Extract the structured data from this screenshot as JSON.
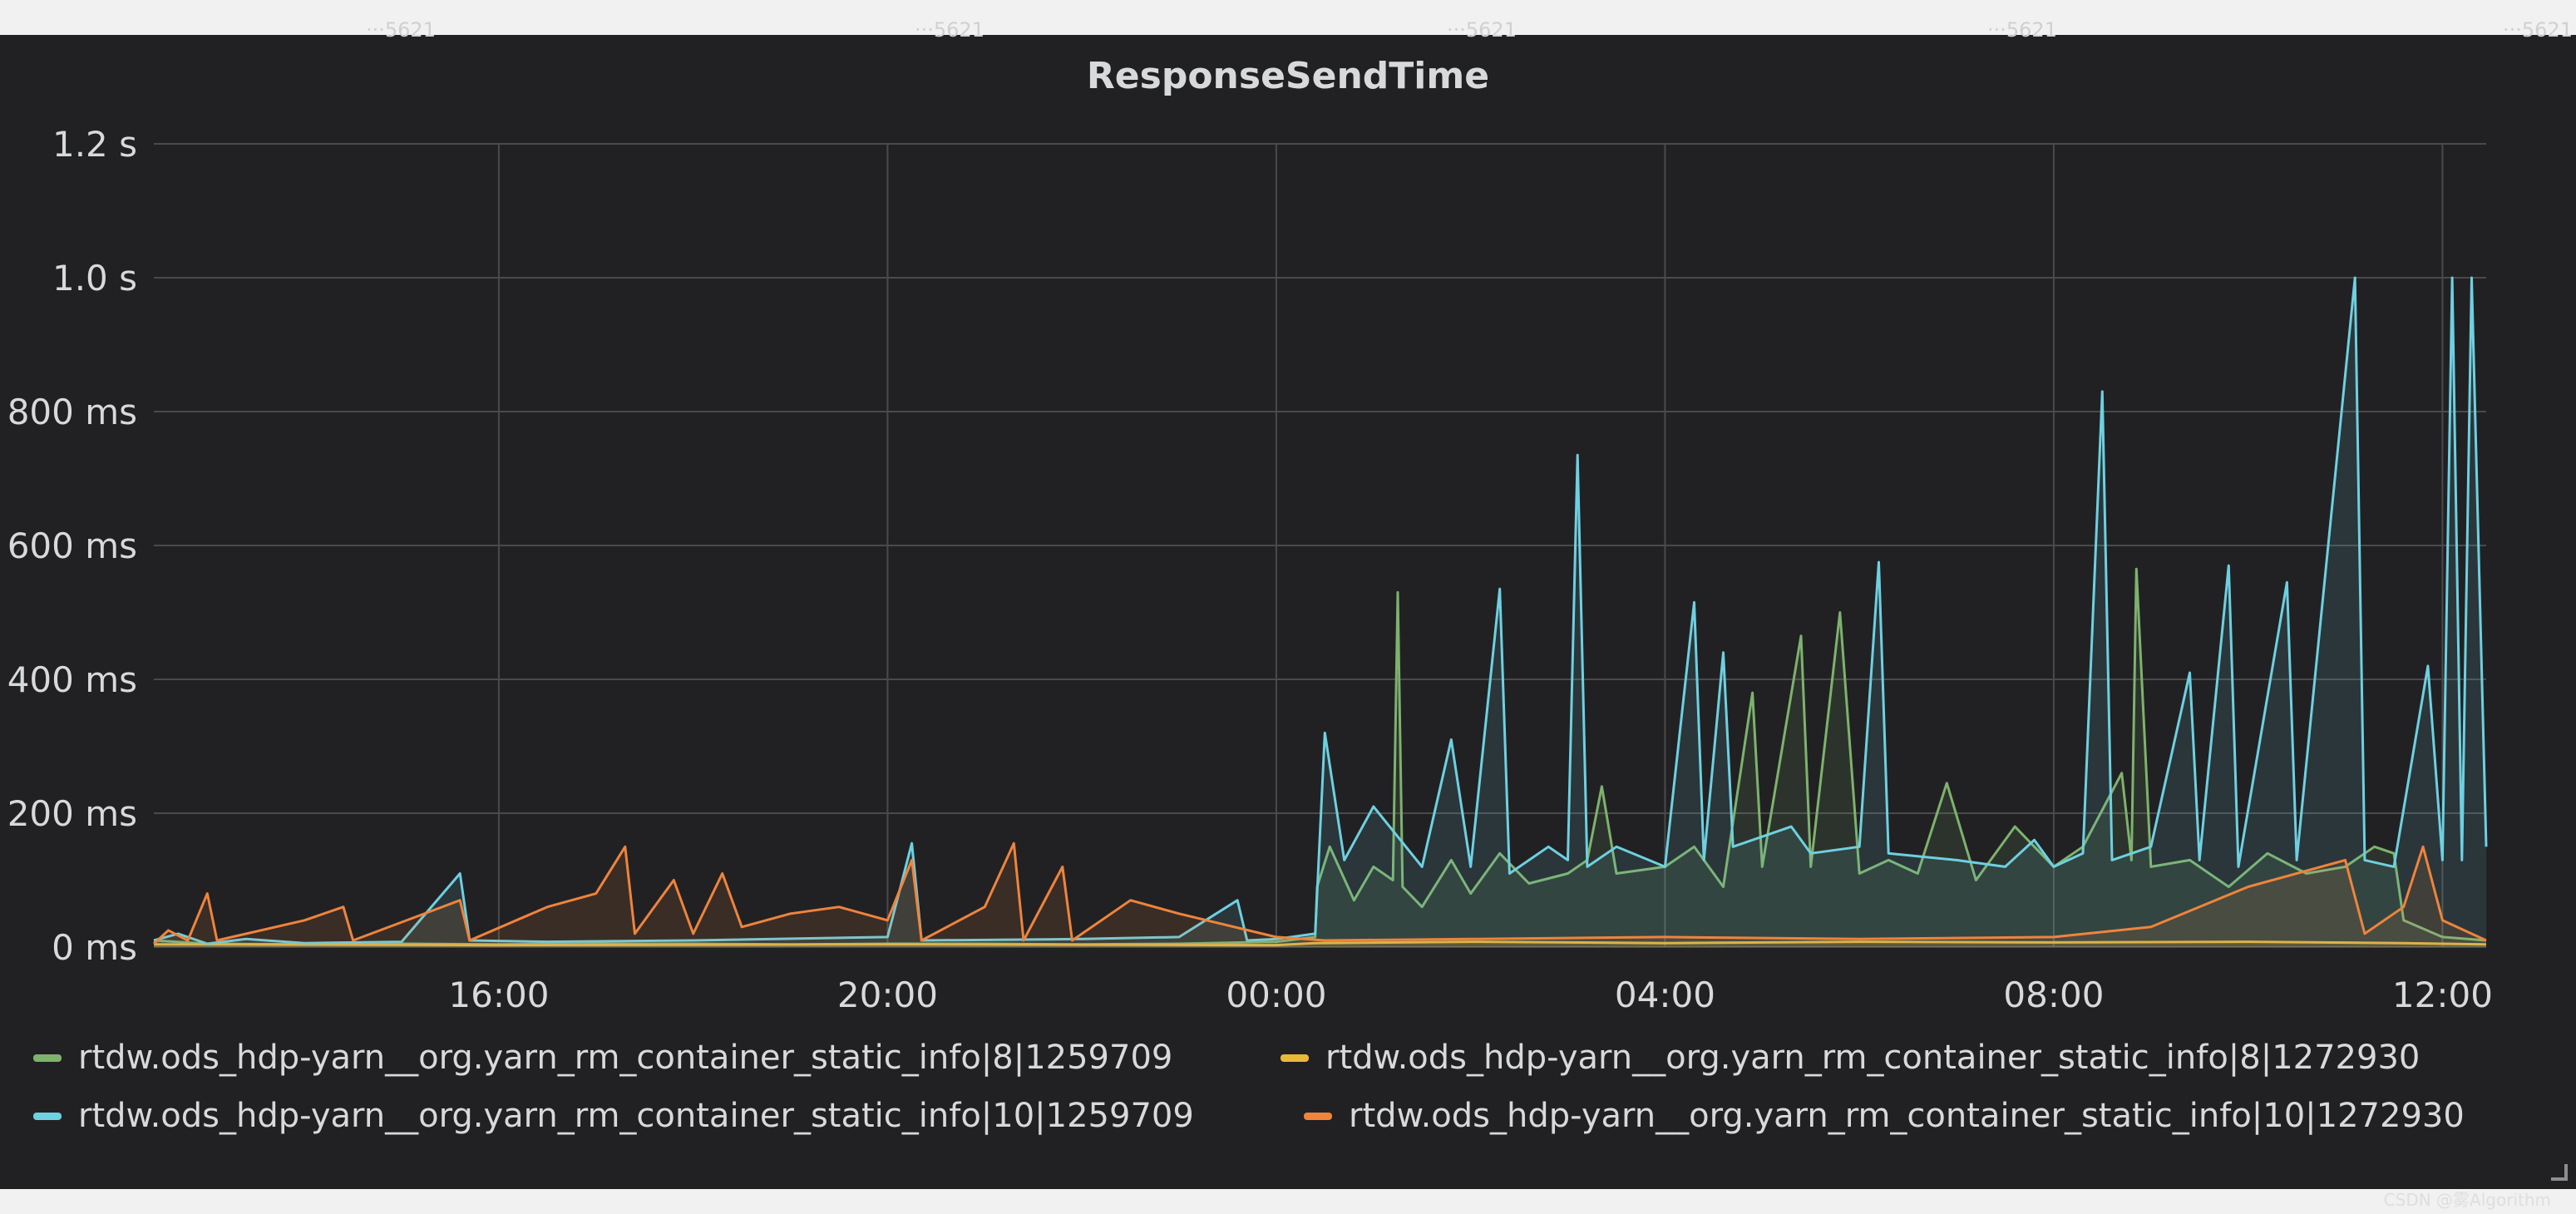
{
  "panel": {
    "title": "ResponseSendTime",
    "credit": "CSDN @雾Algorithm",
    "watermarks": [
      "···5621",
      "···5621",
      "···5621",
      "···5621",
      "···5621"
    ]
  },
  "chart_data": {
    "type": "line",
    "title": "ResponseSendTime",
    "xlabel": "",
    "ylabel": "",
    "x_ticks": [
      "16:00",
      "20:00",
      "00:00",
      "04:00",
      "08:00",
      "12:00"
    ],
    "x_ticks_hours": [
      16,
      20,
      24,
      28,
      32,
      36
    ],
    "xlim_hours": [
      12.45,
      36.45
    ],
    "y_ticks": [
      "0 ms",
      "200 ms",
      "400 ms",
      "600 ms",
      "800 ms",
      "1.0 s",
      "1.2 s"
    ],
    "y_ticks_ms": [
      0,
      200,
      400,
      600,
      800,
      1000,
      1200
    ],
    "ylim_ms": [
      0,
      1200
    ],
    "grid": true,
    "legend_position": "bottom",
    "x_unit": "hours",
    "y_unit": "ms",
    "series": [
      {
        "name": "rtdw.ods_hdp-yarn__org.yarn_rm_container_static_info|8|1259709",
        "color": "#7eb26d",
        "points": [
          [
            12.45,
            10
          ],
          [
            13.0,
            5
          ],
          [
            14.0,
            4
          ],
          [
            15.0,
            5
          ],
          [
            16.0,
            4
          ],
          [
            17.0,
            5
          ],
          [
            18.0,
            5
          ],
          [
            19.0,
            4
          ],
          [
            20.0,
            5
          ],
          [
            21.0,
            5
          ],
          [
            22.0,
            4
          ],
          [
            23.0,
            5
          ],
          [
            24.0,
            8
          ],
          [
            24.4,
            15
          ],
          [
            24.42,
            90
          ],
          [
            24.55,
            150
          ],
          [
            24.8,
            70
          ],
          [
            25.0,
            120
          ],
          [
            25.2,
            100
          ],
          [
            25.25,
            530
          ],
          [
            25.3,
            90
          ],
          [
            25.5,
            60
          ],
          [
            25.8,
            130
          ],
          [
            26.0,
            80
          ],
          [
            26.3,
            140
          ],
          [
            26.6,
            95
          ],
          [
            27.0,
            110
          ],
          [
            27.2,
            130
          ],
          [
            27.35,
            240
          ],
          [
            27.5,
            110
          ],
          [
            28.0,
            120
          ],
          [
            28.3,
            150
          ],
          [
            28.6,
            90
          ],
          [
            28.9,
            380
          ],
          [
            29.0,
            120
          ],
          [
            29.4,
            465
          ],
          [
            29.5,
            120
          ],
          [
            29.8,
            500
          ],
          [
            30.0,
            110
          ],
          [
            30.3,
            130
          ],
          [
            30.6,
            110
          ],
          [
            30.9,
            245
          ],
          [
            31.2,
            100
          ],
          [
            31.6,
            180
          ],
          [
            32.0,
            120
          ],
          [
            32.3,
            150
          ],
          [
            32.7,
            260
          ],
          [
            32.8,
            130
          ],
          [
            32.85,
            565
          ],
          [
            33.0,
            120
          ],
          [
            33.4,
            130
          ],
          [
            33.8,
            90
          ],
          [
            34.2,
            140
          ],
          [
            34.6,
            110
          ],
          [
            35.0,
            120
          ],
          [
            35.3,
            150
          ],
          [
            35.5,
            140
          ],
          [
            35.6,
            40
          ],
          [
            36.0,
            15
          ],
          [
            36.45,
            10
          ]
        ]
      },
      {
        "name": "rtdw.ods_hdp-yarn__org.yarn_rm_container_static_info|8|1272930",
        "color": "#eab839",
        "points": [
          [
            12.45,
            4
          ],
          [
            16.0,
            3
          ],
          [
            20.0,
            4
          ],
          [
            24.0,
            3
          ],
          [
            24.4,
            6
          ],
          [
            26.0,
            8
          ],
          [
            28.0,
            6
          ],
          [
            30.0,
            8
          ],
          [
            32.0,
            7
          ],
          [
            34.0,
            8
          ],
          [
            35.6,
            6
          ],
          [
            36.45,
            4
          ]
        ]
      },
      {
        "name": "rtdw.ods_hdp-yarn__org.yarn_rm_container_static_info|10|1259709",
        "color": "#6ed0e0",
        "points": [
          [
            12.45,
            10
          ],
          [
            12.7,
            20
          ],
          [
            13.0,
            5
          ],
          [
            13.4,
            12
          ],
          [
            14.0,
            6
          ],
          [
            15.0,
            8
          ],
          [
            15.6,
            110
          ],
          [
            15.7,
            10
          ],
          [
            16.5,
            8
          ],
          [
            18.0,
            10
          ],
          [
            20.0,
            15
          ],
          [
            20.25,
            155
          ],
          [
            20.35,
            10
          ],
          [
            22.0,
            12
          ],
          [
            23.0,
            15
          ],
          [
            23.6,
            70
          ],
          [
            23.7,
            10
          ],
          [
            24.0,
            12
          ],
          [
            24.4,
            20
          ],
          [
            24.5,
            320
          ],
          [
            24.7,
            130
          ],
          [
            25.0,
            210
          ],
          [
            25.5,
            120
          ],
          [
            25.8,
            310
          ],
          [
            26.0,
            120
          ],
          [
            26.3,
            535
          ],
          [
            26.4,
            110
          ],
          [
            26.8,
            150
          ],
          [
            27.0,
            130
          ],
          [
            27.1,
            735
          ],
          [
            27.2,
            120
          ],
          [
            27.5,
            150
          ],
          [
            28.0,
            120
          ],
          [
            28.3,
            515
          ],
          [
            28.4,
            130
          ],
          [
            28.6,
            440
          ],
          [
            28.7,
            150
          ],
          [
            29.3,
            180
          ],
          [
            29.5,
            140
          ],
          [
            30.0,
            150
          ],
          [
            30.2,
            575
          ],
          [
            30.3,
            140
          ],
          [
            31.0,
            130
          ],
          [
            31.5,
            120
          ],
          [
            31.8,
            160
          ],
          [
            32.0,
            120
          ],
          [
            32.3,
            140
          ],
          [
            32.5,
            830
          ],
          [
            32.6,
            130
          ],
          [
            33.0,
            150
          ],
          [
            33.4,
            410
          ],
          [
            33.5,
            130
          ],
          [
            33.8,
            570
          ],
          [
            33.9,
            120
          ],
          [
            34.4,
            545
          ],
          [
            34.5,
            130
          ],
          [
            35.1,
            1000
          ],
          [
            35.2,
            130
          ],
          [
            35.5,
            120
          ],
          [
            35.85,
            420
          ],
          [
            36.0,
            130
          ],
          [
            36.1,
            1000
          ],
          [
            36.2,
            130
          ],
          [
            36.3,
            1000
          ],
          [
            36.45,
            150
          ]
        ]
      },
      {
        "name": "rtdw.ods_hdp-yarn__org.yarn_rm_container_static_info|10|1272930",
        "color": "#ef843c",
        "points": [
          [
            12.45,
            5
          ],
          [
            12.6,
            25
          ],
          [
            12.8,
            10
          ],
          [
            13.0,
            80
          ],
          [
            13.1,
            10
          ],
          [
            14.0,
            40
          ],
          [
            14.4,
            60
          ],
          [
            14.5,
            10
          ],
          [
            15.6,
            70
          ],
          [
            15.7,
            10
          ],
          [
            16.5,
            60
          ],
          [
            17.0,
            80
          ],
          [
            17.3,
            150
          ],
          [
            17.4,
            20
          ],
          [
            17.8,
            100
          ],
          [
            18.0,
            20
          ],
          [
            18.3,
            110
          ],
          [
            18.5,
            30
          ],
          [
            19.0,
            50
          ],
          [
            19.5,
            60
          ],
          [
            20.0,
            40
          ],
          [
            20.25,
            130
          ],
          [
            20.35,
            10
          ],
          [
            21.0,
            60
          ],
          [
            21.3,
            155
          ],
          [
            21.4,
            10
          ],
          [
            21.8,
            120
          ],
          [
            21.9,
            10
          ],
          [
            22.5,
            70
          ],
          [
            23.0,
            50
          ],
          [
            24.0,
            15
          ],
          [
            24.5,
            10
          ],
          [
            26.0,
            12
          ],
          [
            28.0,
            15
          ],
          [
            30.0,
            12
          ],
          [
            32.0,
            15
          ],
          [
            33.0,
            30
          ],
          [
            34.0,
            90
          ],
          [
            35.0,
            130
          ],
          [
            35.2,
            20
          ],
          [
            35.6,
            60
          ],
          [
            35.8,
            150
          ],
          [
            36.0,
            40
          ],
          [
            36.45,
            10
          ]
        ]
      }
    ]
  }
}
